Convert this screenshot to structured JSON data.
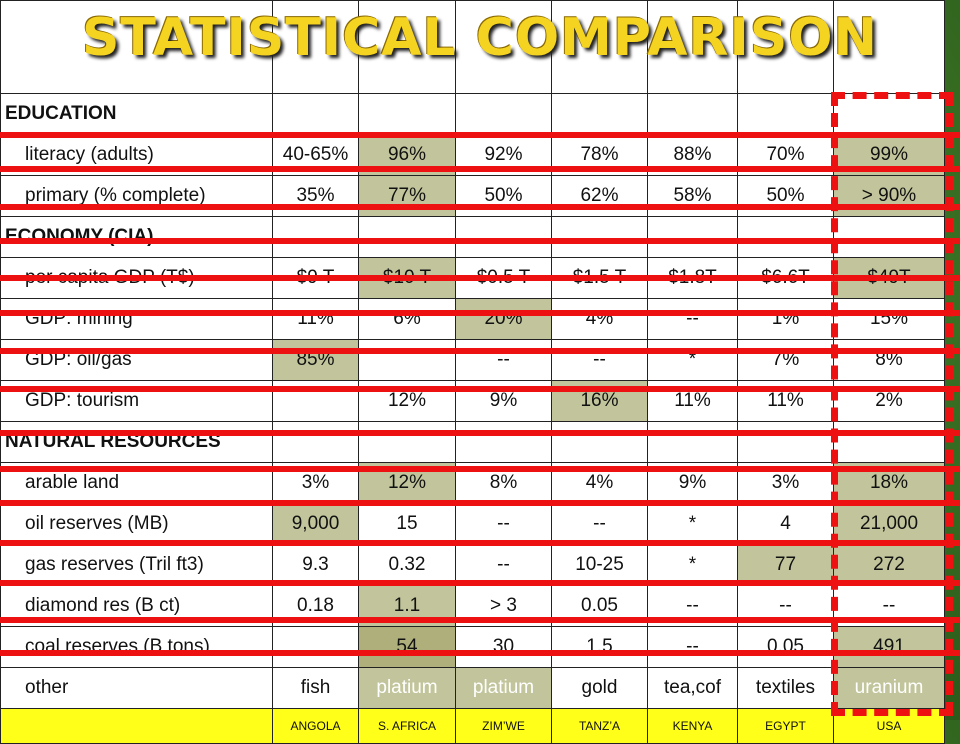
{
  "title": "STATISTICAL COMPARISON",
  "countries": [
    "ANGOLA",
    "S. AFRICA",
    "ZIM’WE",
    "TANZ’A",
    "KENYA",
    "EGYPT",
    "USA"
  ],
  "rows": [
    {
      "label": "EDUCATION",
      "section": true
    },
    {
      "label": "literacy (adults)",
      "cells": [
        "40-65%",
        "96%",
        "92%",
        "78%",
        "88%",
        "70%",
        "99%"
      ]
    },
    {
      "label": "primary (% complete)",
      "cells": [
        "35%",
        "77%",
        "50%",
        "62%",
        "58%",
        "50%",
        "> 90%"
      ]
    },
    {
      "label": "ECONOMY (CIA)",
      "section": true
    },
    {
      "label": "per capita GDP (T$)",
      "cells": [
        "$9 T",
        "$10 T",
        "$0.5 T",
        "$1.5 T",
        "$1.8T",
        "$6.6T",
        "$49T"
      ]
    },
    {
      "label": "GDP: mining",
      "cells": [
        "11%",
        "6%",
        "20%",
        "4%",
        "--",
        "1%",
        "15%"
      ]
    },
    {
      "label": "GDP: oil/gas",
      "cells": [
        "85%",
        "",
        "--",
        "--",
        "*",
        "7%",
        "8%"
      ]
    },
    {
      "label": "GDP: tourism",
      "cells": [
        "",
        "12%",
        "9%",
        "16%",
        "11%",
        "11%",
        "2%"
      ]
    },
    {
      "label": "NATURAL RESOURCES",
      "section": true
    },
    {
      "label": "arable land",
      "cells": [
        "3%",
        "12%",
        "8%",
        "4%",
        "9%",
        "3%",
        "18%"
      ]
    },
    {
      "label": "oil reserves (MB)",
      "cells": [
        "9,000",
        "15",
        "--",
        "--",
        "*",
        "4",
        "21,000"
      ]
    },
    {
      "label": "gas reserves (Tril ft3)",
      "cells": [
        "9.3",
        "0.32",
        "--",
        "10-25",
        "*",
        "77",
        "272"
      ]
    },
    {
      "label": "diamond res (B ct)",
      "cells": [
        "0.18",
        "1.1",
        "> 3",
        "0.05",
        "--",
        "--",
        "--"
      ]
    },
    {
      "label": "coal reserves (B tons)",
      "cells": [
        "",
        "54",
        "30",
        "1.5",
        "--",
        "0.05",
        "491"
      ]
    },
    {
      "label": "other",
      "cells": [
        "fish",
        "platium",
        "platium",
        "gold",
        "tea,cof",
        "textiles",
        "uranium"
      ]
    }
  ],
  "colors": {
    "title": "#f5d321",
    "highlight": "#c2c59b",
    "annotation": "#ee1111",
    "header_band": "#ffff1a",
    "background": "#3f7a28"
  }
}
